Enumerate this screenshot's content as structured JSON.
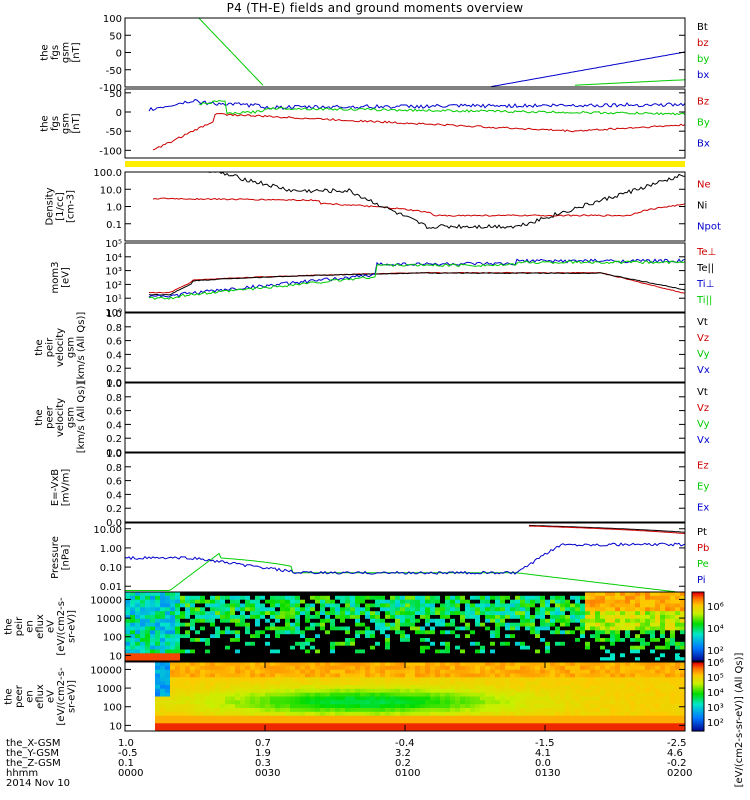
{
  "title": "P4 (TH-E) fields and ground moments overview",
  "colors": {
    "black": "#000000",
    "red": "#cc0000",
    "green": "#00cc00",
    "blue": "#0000cc",
    "yellow": "#ffee00"
  },
  "chart_data": [
    {
      "type": "line",
      "panel": 1,
      "ylabel": [
        "the",
        "fgs",
        "gsm",
        "[nT]"
      ],
      "ylim": [
        -100,
        100
      ],
      "yticks": [
        "100",
        "50",
        "0",
        "-50",
        "-100"
      ],
      "legend": [
        {
          "label": "Bt",
          "color": "black"
        },
        {
          "label": "bz",
          "color": "red"
        },
        {
          "label": "by",
          "color": "green"
        },
        {
          "label": "bx",
          "color": "blue"
        }
      ]
    },
    {
      "type": "line",
      "panel": 2,
      "ylabel": [
        "the",
        "fgs",
        "gsm",
        "[nT]"
      ],
      "ylim": [
        -120,
        60
      ],
      "yticks": [
        "50",
        "0",
        "-50",
        "-100"
      ],
      "legend": [
        {
          "label": "Bz",
          "color": "red"
        },
        {
          "label": "By",
          "color": "green"
        },
        {
          "label": "Bx",
          "color": "blue"
        }
      ]
    },
    {
      "type": "line",
      "panel": 3,
      "yscale": "log",
      "ylabel": [
        "Density",
        "[1/cc]",
        "[cm-3]"
      ],
      "ylim": [
        0.01,
        100
      ],
      "yticks": [
        "100.0",
        "10.0",
        "1.0",
        "0.1"
      ],
      "legend": [
        {
          "label": "Ne",
          "color": "red"
        },
        {
          "label": "Ni",
          "color": "black"
        },
        {
          "label": "Npot",
          "color": "blue"
        }
      ]
    },
    {
      "type": "line",
      "panel": 4,
      "yscale": "log",
      "ylabel": [
        "mom3",
        "[eV]"
      ],
      "ylim": [
        1,
        100000
      ],
      "yticks": [
        "10^5",
        "10^4",
        "10^3",
        "10^2",
        "10^1",
        "10^0"
      ],
      "legend": [
        {
          "label": "Te⊥",
          "color": "red"
        },
        {
          "label": "Te||",
          "color": "black"
        },
        {
          "label": "Ti⊥",
          "color": "blue"
        },
        {
          "label": "Ti||",
          "color": "green"
        }
      ]
    },
    {
      "type": "line",
      "panel": 5,
      "ylabel": [
        "the",
        "peir",
        "velocity",
        "gsm",
        "[km/s (All Qs)]"
      ],
      "ylim": [
        0,
        1
      ],
      "yticks": [
        "1.0",
        "0.8",
        "0.6",
        "0.4",
        "0.2",
        "0.0"
      ],
      "legend": [
        {
          "label": "Vt",
          "color": "black"
        },
        {
          "label": "Vz",
          "color": "red"
        },
        {
          "label": "Vy",
          "color": "green"
        },
        {
          "label": "Vx",
          "color": "blue"
        }
      ]
    },
    {
      "type": "line",
      "panel": 6,
      "ylabel": [
        "the",
        "peer",
        "velocity",
        "gsm",
        "[km/s (All Qs)]"
      ],
      "ylim": [
        0,
        1
      ],
      "yticks": [
        "1.0",
        "0.8",
        "0.6",
        "0.4",
        "0.2",
        "0.0"
      ],
      "legend": [
        {
          "label": "Vt",
          "color": "black"
        },
        {
          "label": "Vz",
          "color": "red"
        },
        {
          "label": "Vy",
          "color": "green"
        },
        {
          "label": "Vx",
          "color": "blue"
        }
      ]
    },
    {
      "type": "line",
      "panel": 7,
      "ylabel": [
        "E=-VxB",
        "[mV/m]"
      ],
      "ylim": [
        0,
        1
      ],
      "yticks": [
        "1.0",
        "0.8",
        "0.6",
        "0.4",
        "0.2",
        "0.0"
      ],
      "legend": [
        {
          "label": "Ez",
          "color": "red"
        },
        {
          "label": "Ey",
          "color": "green"
        },
        {
          "label": "Ex",
          "color": "blue"
        }
      ]
    },
    {
      "type": "line",
      "panel": 8,
      "yscale": "log",
      "ylabel": [
        "Pressure",
        "[nPa]"
      ],
      "ylim": [
        0.005,
        20
      ],
      "yticks": [
        "10.00",
        "1.00",
        "0.10",
        "0.01"
      ],
      "legend": [
        {
          "label": "Pt",
          "color": "black"
        },
        {
          "label": "Pb",
          "color": "red"
        },
        {
          "label": "Pe",
          "color": "green"
        },
        {
          "label": "Pi",
          "color": "blue"
        }
      ]
    },
    {
      "type": "heatmap",
      "panel": 9,
      "ylabel": [
        "the",
        "peir",
        "en",
        "eflux",
        "eV",
        "[eV/(cm2-s-",
        "sr-eV)]"
      ],
      "ylim": [
        5,
        25000
      ],
      "yticks": [
        "10000",
        "1000",
        "100",
        "10"
      ]
    },
    {
      "type": "heatmap",
      "panel": 10,
      "ylabel": [
        "the",
        "peer",
        "en",
        "eflux",
        "eV",
        "[eV/(cm2-s-",
        "sr-eV)]"
      ],
      "ylim": [
        5,
        25000
      ],
      "yticks": [
        "10000",
        "1000",
        "100",
        "10"
      ]
    }
  ],
  "colorbar": {
    "label": "[eV/(cm2-s-sr-eV)] (All Qs)]",
    "ticks_top": [
      "10^6",
      "10^4",
      "10^2"
    ],
    "ticks_bottom": [
      "10^6",
      "10^5",
      "10^4",
      "10^3",
      "10^2"
    ]
  },
  "x_axis": {
    "rows": [
      {
        "label": "the_X-GSM",
        "values": [
          "1.0",
          "0.7",
          "-0.4",
          "-1.5",
          "-2.5"
        ]
      },
      {
        "label": "the_Y-GSM",
        "values": [
          "-0.5",
          "1.9",
          "3.2",
          "4.1",
          "4.6"
        ]
      },
      {
        "label": "the_Z-GSM",
        "values": [
          "0.1",
          "0.3",
          "0.2",
          "0.0",
          "-0.2"
        ]
      },
      {
        "label": "hhmm",
        "values": [
          "0000",
          "0030",
          "0100",
          "0130",
          "0200"
        ]
      }
    ],
    "date": "2014 Nov 10"
  }
}
